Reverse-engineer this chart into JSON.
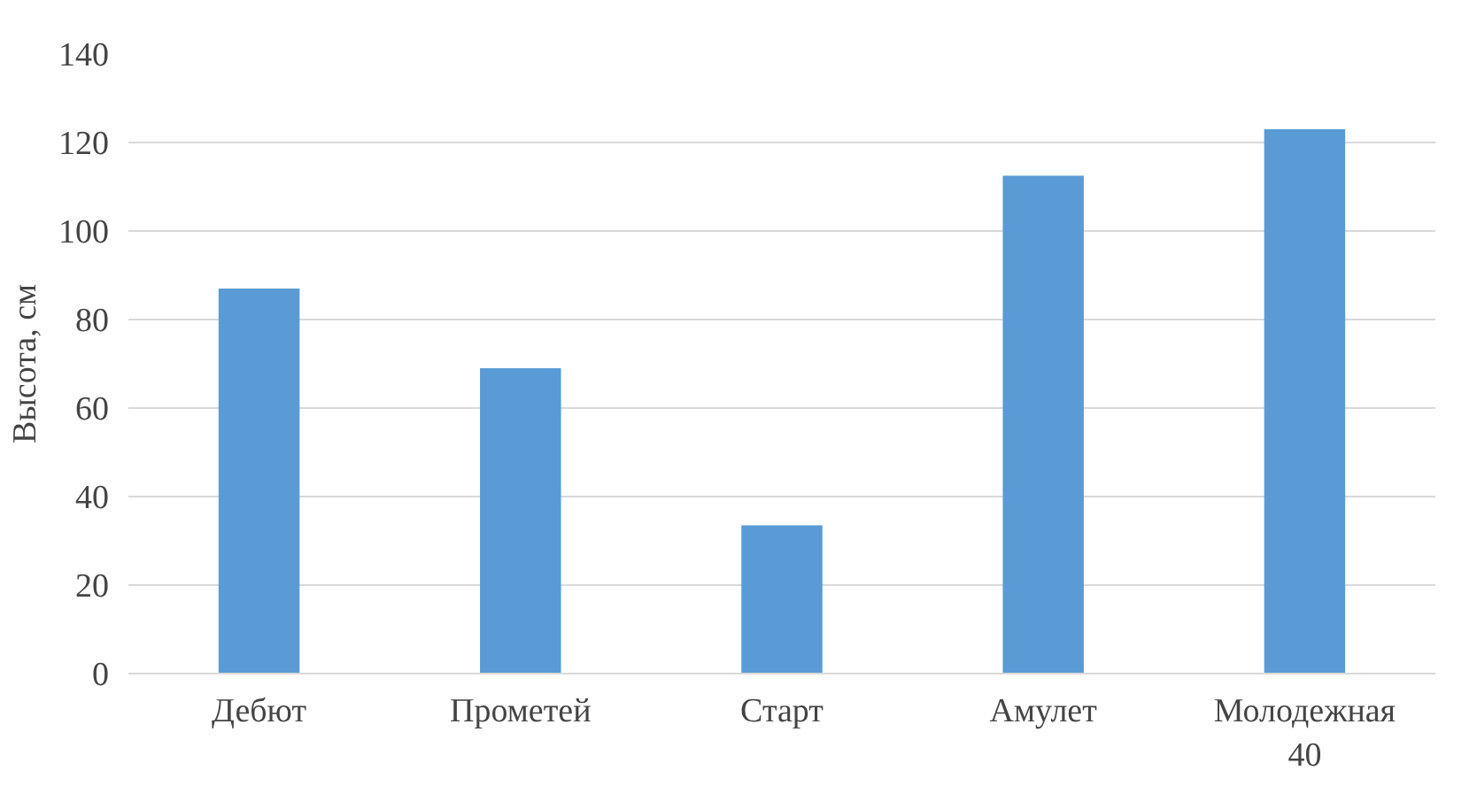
{
  "chart_data": {
    "type": "bar",
    "ylabel": "Высота, см",
    "categories": [
      "Дебют",
      "Прометей",
      "Старт",
      "Амулет",
      "Молодежная 40"
    ],
    "values": [
      87,
      69,
      33.5,
      112.5,
      123
    ],
    "color": "#5b9bd5",
    "ylim": [
      0,
      140
    ],
    "yticks": [
      0,
      20,
      40,
      60,
      80,
      100,
      120,
      140
    ],
    "grid": "y"
  }
}
